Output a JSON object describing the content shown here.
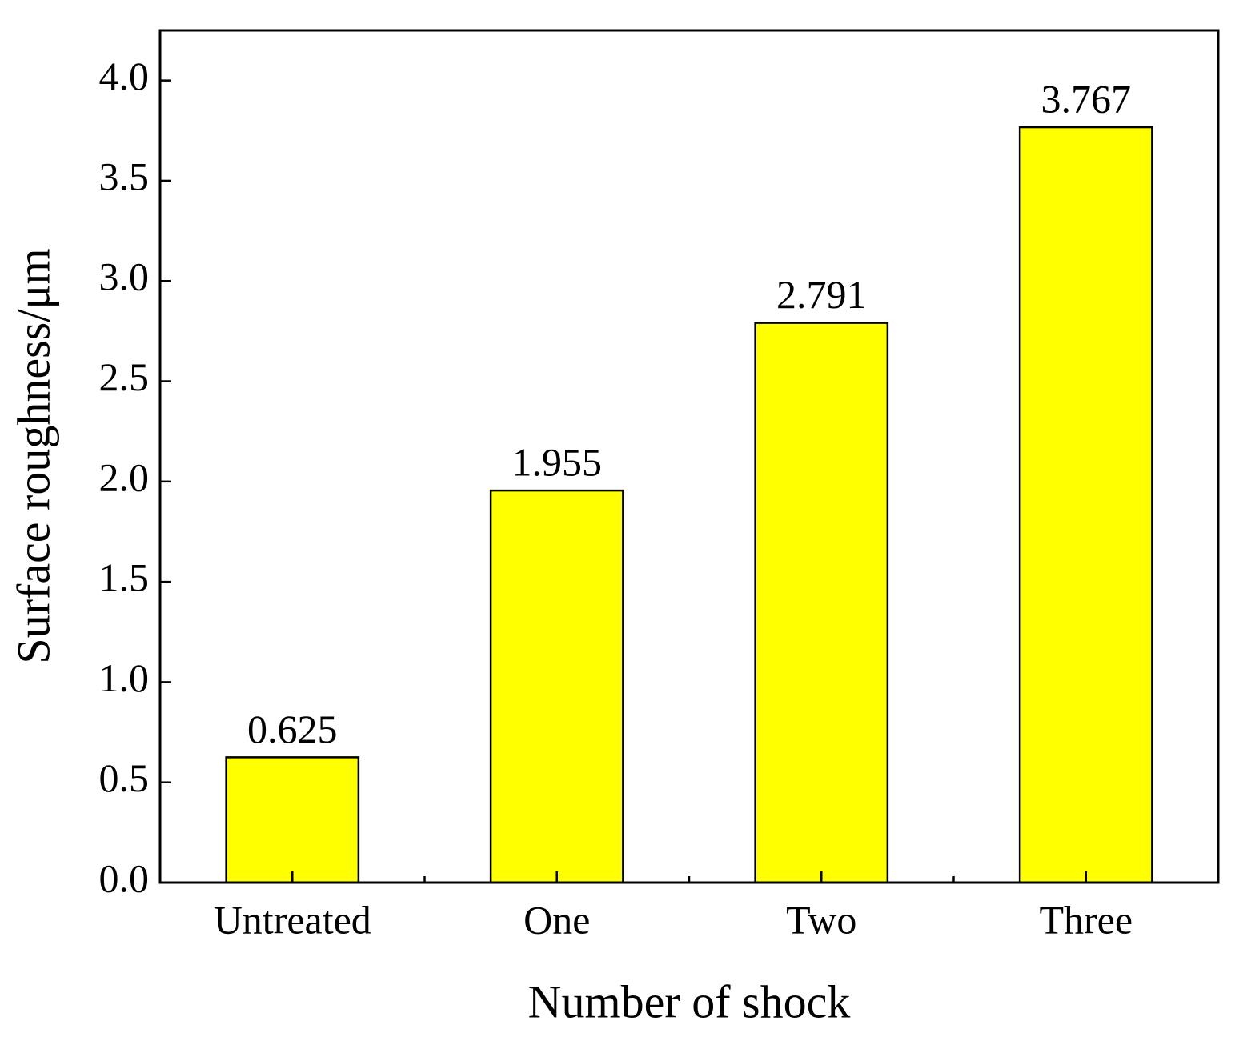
{
  "chart_data": {
    "type": "bar",
    "x_label": "Number of shock",
    "y_label": "Surface roughness/μm",
    "categories": [
      "Untreated",
      "One",
      "Two",
      "Three"
    ],
    "values": [
      0.625,
      1.955,
      2.791,
      3.767
    ],
    "color": "#ffff00",
    "ylim": [
      0,
      4.25
    ],
    "yticks": [
      {
        "value": 0,
        "label": "0.0"
      },
      0.5,
      {
        "value": 1,
        "label": "1.0"
      },
      1.5,
      {
        "value": 2,
        "label": "2.0"
      },
      2.5,
      {
        "value": 3,
        "label": "3.0"
      },
      3.5,
      {
        "value": 4,
        "label": "4.0"
      }
    ],
    "grid": false
  }
}
